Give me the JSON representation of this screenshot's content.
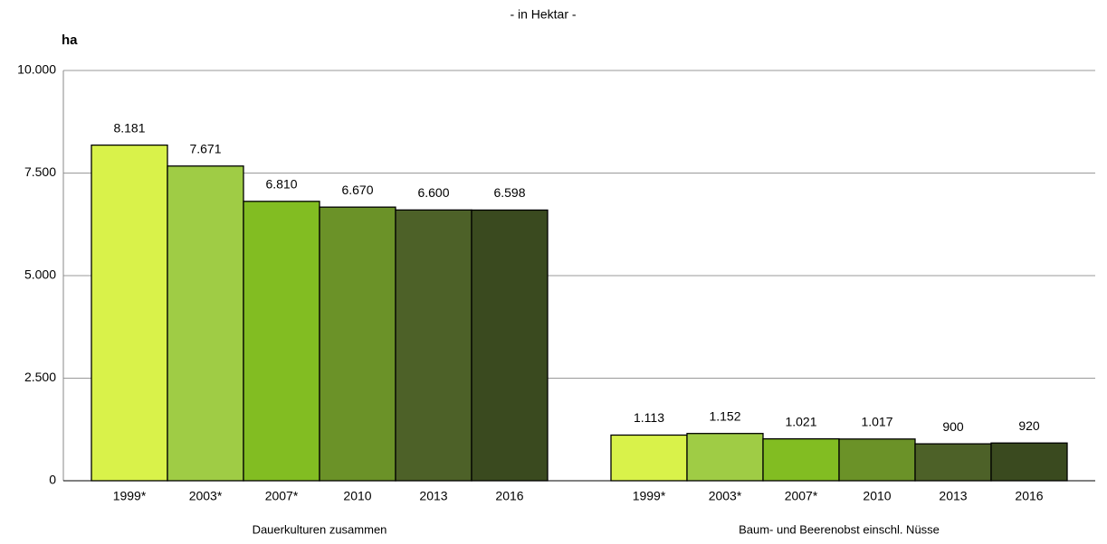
{
  "chart_data": {
    "type": "bar",
    "title": "- in Hektar -",
    "y_label": "ha",
    "categories": [
      "Dauerkulturen zusammen",
      "Baum- und Beerenobst einschl. Nüsse"
    ],
    "series": [
      {
        "name": "1999*",
        "color": "#d9f24a",
        "values": [
          8181,
          1113
        ],
        "value_labels": [
          "8.181",
          "1.113"
        ]
      },
      {
        "name": "2003*",
        "color": "#9fcc45",
        "values": [
          7671,
          1152
        ],
        "value_labels": [
          "7.671",
          "1.152"
        ]
      },
      {
        "name": "2007*",
        "color": "#82bd22",
        "values": [
          6810,
          1021
        ],
        "value_labels": [
          "6.810",
          "1.021"
        ]
      },
      {
        "name": "2010",
        "color": "#6b9228",
        "values": [
          6670,
          1017
        ],
        "value_labels": [
          "6.670",
          "1.017"
        ]
      },
      {
        "name": "2013",
        "color": "#4d6128",
        "values": [
          6600,
          900
        ],
        "value_labels": [
          "6.600",
          "900"
        ]
      },
      {
        "name": "2016",
        "color": "#3a4a1f",
        "values": [
          6598,
          920
        ],
        "value_labels": [
          "6.598",
          "920"
        ]
      }
    ],
    "ylim": [
      0,
      10000
    ],
    "yticks": [
      0,
      {
        "value": 2500,
        "label": "2.500"
      },
      {
        "value": 5000,
        "label": "5.000"
      },
      {
        "value": 7500,
        "label": "7.500"
      },
      {
        "value": 10000,
        "label": "10.000"
      }
    ],
    "grid": true
  }
}
